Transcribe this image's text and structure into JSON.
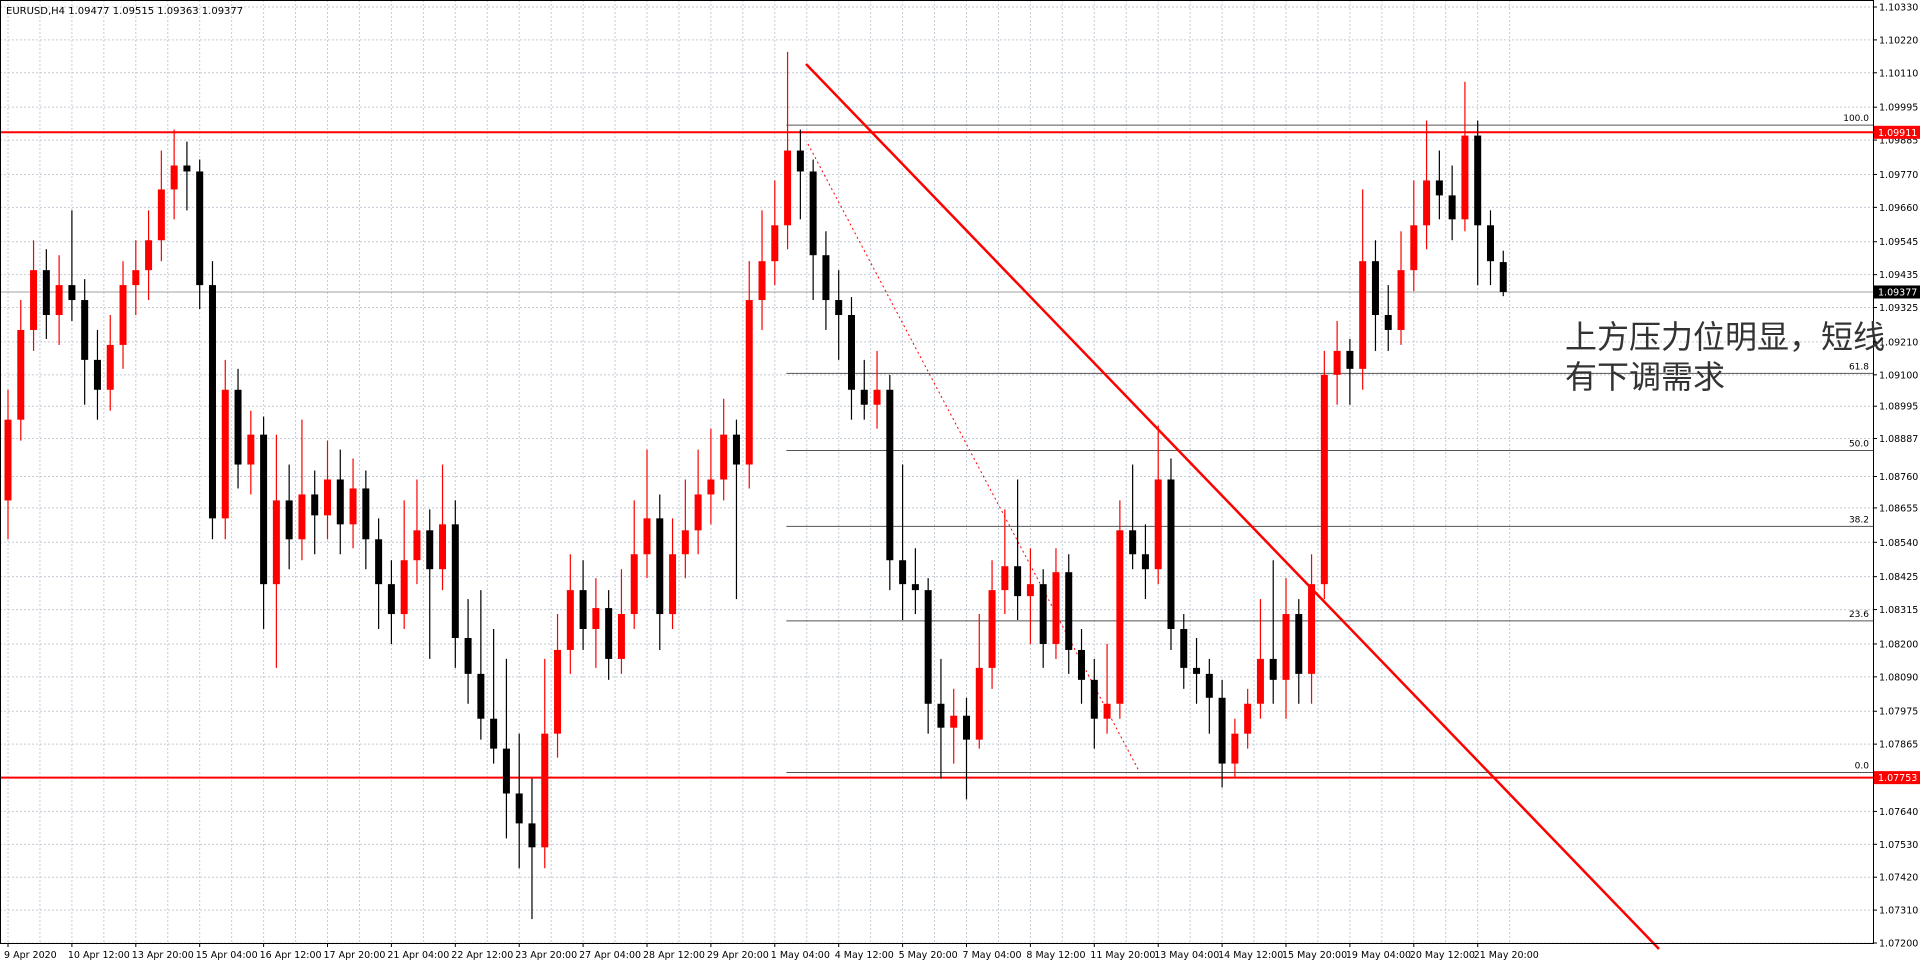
{
  "chart_data": {
    "type": "candlestick",
    "header": "EURUSD,H4  1.09477 1.09515 1.09363 1.09377",
    "annotation": [
      "上方压力位明显，短线",
      "有下调需求"
    ],
    "up_color": "#ff0000",
    "down_color": "#000000",
    "ylim": [
      1.072,
      1.1033
    ],
    "yticks": [
      {
        "value": 1.1033,
        "label": "1.10330"
      },
      {
        "value": 1.1022,
        "label": "1.10220"
      },
      {
        "value": 1.1011,
        "label": "1.10110"
      },
      {
        "value": 1.09995,
        "label": "1.09995"
      },
      {
        "value": 1.09885,
        "label": "1.09885"
      },
      {
        "value": 1.0977,
        "label": "1.09770"
      },
      {
        "value": 1.0966,
        "label": "1.09660"
      },
      {
        "value": 1.09545,
        "label": "1.09545"
      },
      {
        "value": 1.09435,
        "label": "1.09435"
      },
      {
        "value": 1.09325,
        "label": "1.09325"
      },
      {
        "value": 1.0921,
        "label": "1.09210"
      },
      {
        "value": 1.091,
        "label": "1.09100"
      },
      {
        "value": 1.08995,
        "label": "1.08995"
      },
      {
        "value": 1.08887,
        "label": "1.08887"
      },
      {
        "value": 1.0876,
        "label": "1.08760"
      },
      {
        "value": 1.08655,
        "label": "1.08655"
      },
      {
        "value": 1.0854,
        "label": "1.08540"
      },
      {
        "value": 1.08425,
        "label": "1.08425"
      },
      {
        "value": 1.08315,
        "label": "1.08315"
      },
      {
        "value": 1.082,
        "label": "1.08200"
      },
      {
        "value": 1.0809,
        "label": "1.08090"
      },
      {
        "value": 1.07975,
        "label": "1.07975"
      },
      {
        "value": 1.07865,
        "label": "1.07865"
      },
      {
        "value": 1.0764,
        "label": "1.07640"
      },
      {
        "value": 1.0753,
        "label": "1.07530"
      },
      {
        "value": 1.0742,
        "label": "1.07420"
      },
      {
        "value": 1.0731,
        "label": "1.07310"
      },
      {
        "value": 1.072,
        "label": "1.07200"
      }
    ],
    "price_markers": [
      {
        "value": 1.09911,
        "label": "1.09911",
        "color": "#ff0000",
        "line_color": "#ff0000"
      },
      {
        "value": 1.09377,
        "label": "1.09377",
        "color": "#000000",
        "line_color": "#a0a0a0"
      },
      {
        "value": 1.07753,
        "label": "1.07753",
        "color": "#ff0000",
        "line_color": "#ff0000"
      }
    ],
    "fib_levels": [
      {
        "label": "100.0",
        "value": 1.09935
      },
      {
        "label": "61.8",
        "value": 1.09105
      },
      {
        "label": "50.0",
        "value": 1.08847
      },
      {
        "label": "38.2",
        "value": 1.08593
      },
      {
        "label": "23.6",
        "value": 1.08277
      },
      {
        "label": "0.0",
        "value": 1.0777
      }
    ],
    "x_labels": [
      "9 Apr 2020",
      "10 Apr 12:00",
      "13 Apr 20:00",
      "15 Apr 04:00",
      "16 Apr 12:00",
      "17 Apr 20:00",
      "21 Apr 04:00",
      "22 Apr 12:00",
      "23 Apr 20:00",
      "27 Apr 04:00",
      "28 Apr 12:00",
      "29 Apr 20:00",
      "1 May 04:00",
      "4 May 12:00",
      "5 May 20:00",
      "7 May 04:00",
      "8 May 12:00",
      "11 May 20:00",
      "13 May 04:00",
      "14 May 12:00",
      "15 May 20:00",
      "19 May 04:00",
      "20 May 12:00",
      "21 May 20:00"
    ],
    "candles": [
      [
        1.0868,
        1.0905,
        1.0855,
        1.0895
      ],
      [
        1.0895,
        1.0935,
        1.0888,
        1.0925
      ],
      [
        1.0925,
        1.0955,
        1.0918,
        1.0945
      ],
      [
        1.0945,
        1.0952,
        1.0922,
        1.093
      ],
      [
        1.093,
        1.095,
        1.092,
        1.094
      ],
      [
        1.094,
        1.0965,
        1.0928,
        1.0935
      ],
      [
        1.0935,
        1.0942,
        1.09,
        1.0915
      ],
      [
        1.0915,
        1.0925,
        1.0895,
        1.0905
      ],
      [
        1.0905,
        1.093,
        1.0898,
        1.092
      ],
      [
        1.092,
        1.0948,
        1.0912,
        1.094
      ],
      [
        1.094,
        1.0955,
        1.093,
        1.0945
      ],
      [
        1.0945,
        1.0965,
        1.0935,
        1.0955
      ],
      [
        1.0955,
        1.0985,
        1.0948,
        1.0972
      ],
      [
        1.0972,
        1.0992,
        1.0962,
        1.098
      ],
      [
        1.098,
        1.0988,
        1.0965,
        1.0978
      ],
      [
        1.0978,
        1.0982,
        1.0932,
        1.094
      ],
      [
        1.094,
        1.0948,
        1.0855,
        1.0862
      ],
      [
        1.0862,
        1.0915,
        1.0855,
        1.0905
      ],
      [
        1.0905,
        1.0912,
        1.0872,
        1.088
      ],
      [
        1.088,
        1.0898,
        1.087,
        1.089
      ],
      [
        1.089,
        1.0896,
        1.0825,
        1.084
      ],
      [
        1.084,
        1.089,
        1.0812,
        1.0868
      ],
      [
        1.0868,
        1.088,
        1.0845,
        1.0855
      ],
      [
        1.0855,
        1.0895,
        1.0848,
        1.087
      ],
      [
        1.087,
        1.0878,
        1.085,
        1.0863
      ],
      [
        1.0863,
        1.0888,
        1.0855,
        1.0875
      ],
      [
        1.0875,
        1.0885,
        1.085,
        1.086
      ],
      [
        1.086,
        1.0882,
        1.0852,
        1.0872
      ],
      [
        1.0872,
        1.0878,
        1.0845,
        1.0855
      ],
      [
        1.0855,
        1.0862,
        1.0825,
        1.084
      ],
      [
        1.084,
        1.0848,
        1.082,
        1.083
      ],
      [
        1.083,
        1.0868,
        1.0825,
        1.0848
      ],
      [
        1.0848,
        1.0875,
        1.084,
        1.0858
      ],
      [
        1.0858,
        1.0865,
        1.0815,
        1.0845
      ],
      [
        1.0845,
        1.088,
        1.0838,
        1.086
      ],
      [
        1.086,
        1.0868,
        1.0812,
        1.0822
      ],
      [
        1.0822,
        1.0835,
        1.08,
        1.081
      ],
      [
        1.081,
        1.0838,
        1.0788,
        1.0795
      ],
      [
        1.0795,
        1.0825,
        1.078,
        1.0785
      ],
      [
        1.0785,
        1.0815,
        1.0755,
        1.077
      ],
      [
        1.077,
        1.079,
        1.0745,
        1.076
      ],
      [
        1.076,
        1.0775,
        1.0728,
        1.0752
      ],
      [
        1.0752,
        1.0815,
        1.0745,
        1.079
      ],
      [
        1.079,
        1.083,
        1.0782,
        1.0818
      ],
      [
        1.0818,
        1.085,
        1.081,
        1.0838
      ],
      [
        1.0838,
        1.0848,
        1.0818,
        1.0825
      ],
      [
        1.0825,
        1.0842,
        1.0812,
        1.0832
      ],
      [
        1.0832,
        1.0838,
        1.0808,
        1.0815
      ],
      [
        1.0815,
        1.0845,
        1.081,
        1.083
      ],
      [
        1.083,
        1.0868,
        1.0825,
        1.085
      ],
      [
        1.085,
        1.0885,
        1.0842,
        1.0862
      ],
      [
        1.0862,
        1.087,
        1.0818,
        1.083
      ],
      [
        1.083,
        1.0862,
        1.0825,
        1.085
      ],
      [
        1.085,
        1.0875,
        1.0842,
        1.0858
      ],
      [
        1.0858,
        1.0885,
        1.085,
        1.087
      ],
      [
        1.087,
        1.0892,
        1.086,
        1.0875
      ],
      [
        1.0875,
        1.0902,
        1.0868,
        1.089
      ],
      [
        1.089,
        1.0895,
        1.0835,
        1.088
      ],
      [
        1.088,
        1.0948,
        1.0872,
        1.0935
      ],
      [
        1.0935,
        1.0965,
        1.0925,
        1.0948
      ],
      [
        1.0948,
        1.0975,
        1.094,
        1.096
      ],
      [
        1.096,
        1.1018,
        1.0952,
        1.0985
      ],
      [
        1.0985,
        1.0992,
        1.0962,
        1.0978
      ],
      [
        1.0978,
        1.0982,
        1.0935,
        1.095
      ],
      [
        1.095,
        1.0958,
        1.0925,
        1.0935
      ],
      [
        1.0935,
        1.0945,
        1.0915,
        1.093
      ],
      [
        1.093,
        1.0936,
        1.0895,
        1.0905
      ],
      [
        1.0905,
        1.0915,
        1.0895,
        1.09
      ],
      [
        1.09,
        1.0918,
        1.0892,
        1.0905
      ],
      [
        1.0905,
        1.091,
        1.0838,
        1.0848
      ],
      [
        1.0848,
        1.088,
        1.0828,
        1.084
      ],
      [
        1.084,
        1.0852,
        1.083,
        1.0838
      ],
      [
        1.0838,
        1.0842,
        1.079,
        1.08
      ],
      [
        1.08,
        1.0815,
        1.0775,
        1.0792
      ],
      [
        1.0792,
        1.0805,
        1.078,
        1.0796
      ],
      [
        1.0796,
        1.0802,
        1.0768,
        1.0788
      ],
      [
        1.0788,
        1.083,
        1.0785,
        1.0812
      ],
      [
        1.0812,
        1.0848,
        1.0805,
        1.0838
      ],
      [
        1.0838,
        1.0865,
        1.083,
        1.0846
      ],
      [
        1.0846,
        1.0875,
        1.0828,
        1.0836
      ],
      [
        1.0836,
        1.0852,
        1.082,
        1.084
      ],
      [
        1.084,
        1.0845,
        1.0812,
        1.082
      ],
      [
        1.082,
        1.0852,
        1.0815,
        1.0844
      ],
      [
        1.0844,
        1.085,
        1.081,
        1.0818
      ],
      [
        1.0818,
        1.0825,
        1.08,
        1.0808
      ],
      [
        1.0808,
        1.0815,
        1.0785,
        1.0795
      ],
      [
        1.0795,
        1.082,
        1.079,
        1.08
      ],
      [
        1.08,
        1.0868,
        1.0795,
        1.0858
      ],
      [
        1.0858,
        1.088,
        1.0845,
        1.085
      ],
      [
        1.085,
        1.086,
        1.0835,
        1.0845
      ],
      [
        1.0845,
        1.0893,
        1.084,
        1.0875
      ],
      [
        1.0875,
        1.0882,
        1.0818,
        1.0825
      ],
      [
        1.0825,
        1.083,
        1.0805,
        1.0812
      ],
      [
        1.0812,
        1.0822,
        1.08,
        1.081
      ],
      [
        1.081,
        1.0815,
        1.079,
        1.0802
      ],
      [
        1.0802,
        1.0808,
        1.0772,
        1.078
      ],
      [
        1.078,
        1.0795,
        1.0775,
        1.079
      ],
      [
        1.079,
        1.0805,
        1.0785,
        1.08
      ],
      [
        1.08,
        1.0835,
        1.0795,
        1.0815
      ],
      [
        1.0815,
        1.0848,
        1.08,
        1.0808
      ],
      [
        1.0808,
        1.0842,
        1.0795,
        1.083
      ],
      [
        1.083,
        1.0835,
        1.08,
        1.081
      ],
      [
        1.081,
        1.085,
        1.08,
        1.084
      ],
      [
        1.084,
        1.0918,
        1.0835,
        1.091
      ],
      [
        1.091,
        1.0928,
        1.09,
        1.0918
      ],
      [
        1.0918,
        1.0922,
        1.09,
        1.0912
      ],
      [
        1.0912,
        1.0972,
        1.0905,
        1.0948
      ],
      [
        1.0948,
        1.0955,
        1.0918,
        1.093
      ],
      [
        1.093,
        1.094,
        1.0918,
        1.0925
      ],
      [
        1.0925,
        1.0958,
        1.092,
        1.0945
      ],
      [
        1.0945,
        1.0975,
        1.0938,
        1.096
      ],
      [
        1.096,
        1.0995,
        1.0952,
        1.0975
      ],
      [
        1.0975,
        1.0985,
        1.0962,
        1.097
      ],
      [
        1.097,
        1.098,
        1.0955,
        1.0962
      ],
      [
        1.0962,
        1.1008,
        1.0958,
        1.099
      ],
      [
        1.099,
        1.0995,
        1.094,
        1.096
      ],
      [
        1.096,
        1.0965,
        1.094,
        1.0948
      ],
      [
        1.09477,
        1.09515,
        1.09363,
        1.09377
      ]
    ]
  }
}
